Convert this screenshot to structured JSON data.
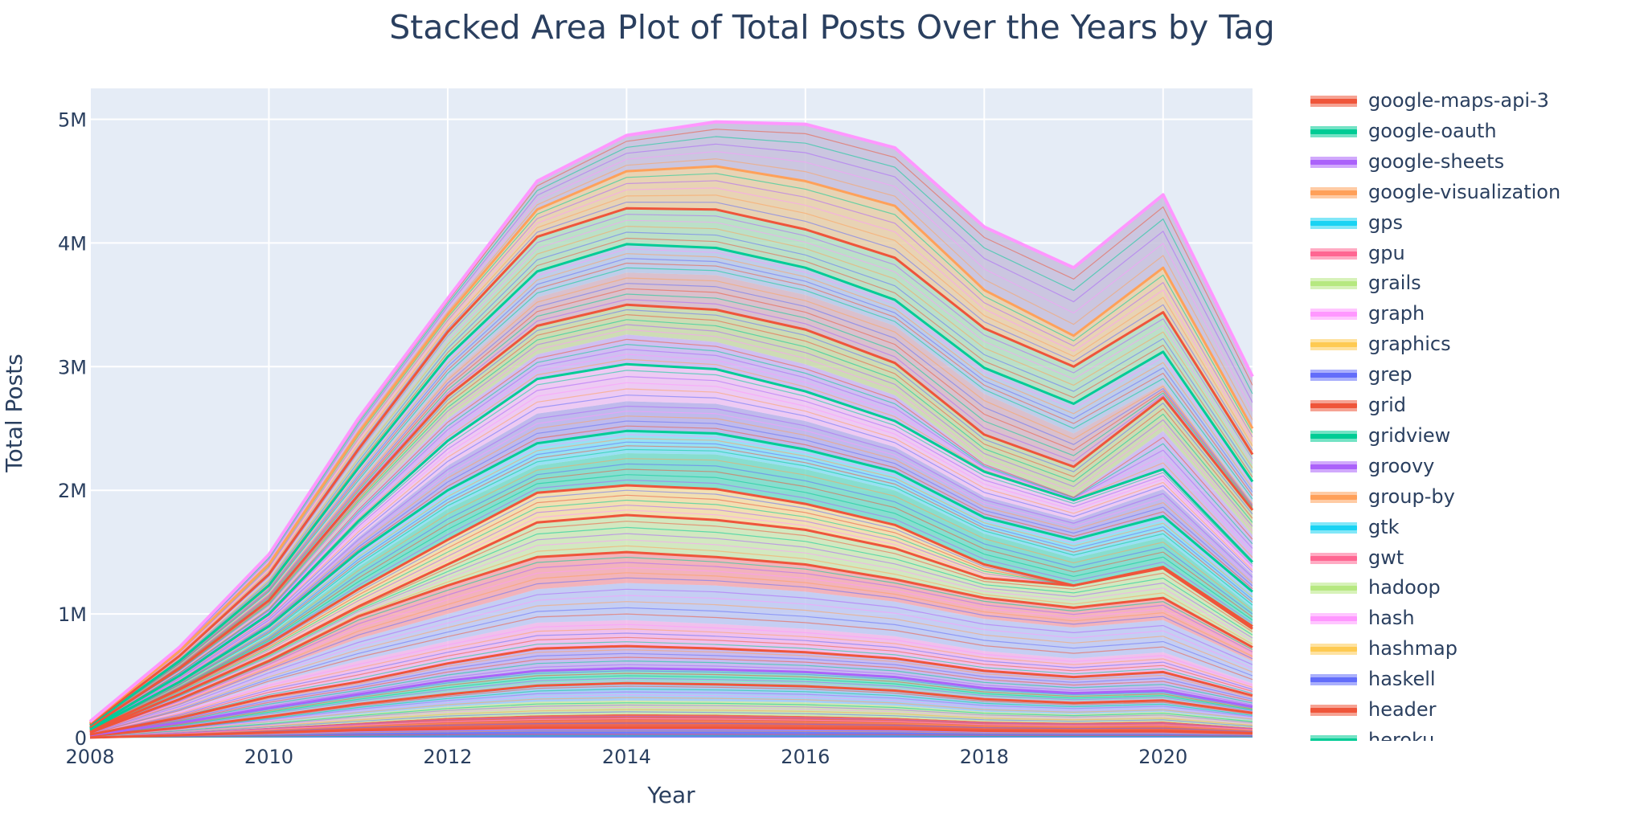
{
  "chart_data": {
    "type": "area",
    "stacked": true,
    "title": "Stacked Area Plot of Total Posts Over the Years by Tag",
    "xlabel": "Year",
    "ylabel": "Total Posts",
    "xlim": [
      2008,
      2021
    ],
    "ylim": [
      0,
      5250000
    ],
    "x_ticks": [
      2008,
      2010,
      2012,
      2014,
      2016,
      2018,
      2020
    ],
    "x_tick_labels": [
      "2008",
      "2010",
      "2012",
      "2014",
      "2016",
      "2018",
      "2020"
    ],
    "y_ticks": [
      0,
      1000000,
      2000000,
      3000000,
      4000000,
      5000000
    ],
    "y_tick_labels": [
      "0",
      "1M",
      "2M",
      "3M",
      "4M",
      "5M"
    ],
    "grid": true,
    "legend_position": "right",
    "x": [
      2008,
      2009,
      2010,
      2011,
      2012,
      2013,
      2014,
      2015,
      2016,
      2017,
      2018,
      2019,
      2020,
      2021
    ],
    "total": [
      130000,
      730000,
      1480000,
      2580000,
      3550000,
      4500000,
      4870000,
      4980000,
      4960000,
      4770000,
      4130000,
      3800000,
      4390000,
      2920000
    ],
    "visible_bands": [
      {
        "name": "band-1",
        "cum": [
          0,
          20000,
          40000,
          60000,
          70000,
          80000,
          80000,
          80000,
          75000,
          70000,
          55000,
          50000,
          50000,
          35000
        ],
        "color": "#636efa"
      },
      {
        "name": "band-2",
        "cum": [
          5000,
          40000,
          80000,
          120000,
          160000,
          180000,
          190000,
          185000,
          175000,
          160000,
          130000,
          120000,
          130000,
          80000
        ],
        "color": "#ef553b"
      },
      {
        "name": "band-3",
        "cum": [
          10000,
          60000,
          120000,
          190000,
          250000,
          290000,
          300000,
          295000,
          285000,
          260000,
          210000,
          190000,
          210000,
          140000
        ],
        "color": "#c9e8a4"
      },
      {
        "name": "band-4",
        "cum": [
          15000,
          80000,
          170000,
          270000,
          350000,
          420000,
          440000,
          430000,
          415000,
          380000,
          310000,
          280000,
          300000,
          200000
        ],
        "color": "#9dc9f5"
      },
      {
        "name": "band-5",
        "cum": [
          20000,
          120000,
          240000,
          350000,
          460000,
          540000,
          560000,
          550000,
          530000,
          490000,
          400000,
          360000,
          380000,
          250000
        ],
        "color": "#7ee0c6"
      },
      {
        "name": "band-6",
        "cum": [
          25000,
          160000,
          330000,
          450000,
          600000,
          720000,
          740000,
          720000,
          690000,
          640000,
          540000,
          490000,
          530000,
          340000
        ],
        "color": "#c3b4ee"
      },
      {
        "name": "band-7",
        "cum": [
          30000,
          210000,
          440000,
          620000,
          780000,
          930000,
          950000,
          920000,
          880000,
          820000,
          700000,
          640000,
          690000,
          440000
        ],
        "color": "#f2b8ea"
      },
      {
        "name": "band-8",
        "cum": [
          35000,
          260000,
          540000,
          800000,
          1000000,
          1200000,
          1250000,
          1230000,
          1180000,
          1100000,
          960000,
          890000,
          950000,
          620000
        ],
        "color": "#bfc9f2"
      },
      {
        "name": "band-9",
        "cum": [
          40000,
          310000,
          620000,
          980000,
          1230000,
          1460000,
          1500000,
          1460000,
          1400000,
          1280000,
          1130000,
          1050000,
          1130000,
          730000
        ],
        "color": "#f5a9b0"
      },
      {
        "name": "band-10",
        "cum": [
          45000,
          350000,
          680000,
          1060000,
          1400000,
          1740000,
          1800000,
          1760000,
          1680000,
          1530000,
          1290000,
          1230000,
          1370000,
          880000
        ],
        "color": "#cfe7b6"
      },
      {
        "name": "band-11",
        "cum": [
          55000,
          390000,
          760000,
          1200000,
          1600000,
          1980000,
          2040000,
          2010000,
          1890000,
          1720000,
          1400000,
          1230000,
          1380000,
          900000
        ],
        "color": "#f3dda6"
      },
      {
        "name": "band-12",
        "cum": [
          60000,
          420000,
          830000,
          1380000,
          1850000,
          2200000,
          2300000,
          2290000,
          2170000,
          2000000,
          1650000,
          1450000,
          1620000,
          1050000
        ],
        "color": "#77dcc8"
      },
      {
        "name": "band-13",
        "cum": [
          65000,
          450000,
          900000,
          1500000,
          2000000,
          2380000,
          2480000,
          2460000,
          2330000,
          2150000,
          1780000,
          1600000,
          1790000,
          1180000
        ],
        "color": "#8bdff2"
      },
      {
        "name": "band-14",
        "cum": [
          70000,
          480000,
          960000,
          1620000,
          2200000,
          2620000,
          2720000,
          2700000,
          2560000,
          2350000,
          1950000,
          1760000,
          2010000,
          1320000
        ],
        "color": "#b9b2ea"
      },
      {
        "name": "band-15",
        "cum": [
          75000,
          500000,
          1000000,
          1750000,
          2400000,
          2900000,
          3020000,
          2980000,
          2800000,
          2560000,
          2150000,
          1920000,
          2170000,
          1420000
        ],
        "color": "#eec4f2"
      },
      {
        "name": "band-16",
        "cum": [
          80000,
          530000,
          1050000,
          1860000,
          2580000,
          3100000,
          3260000,
          3200000,
          3020000,
          2770000,
          2220000,
          1950000,
          2480000,
          1640000
        ],
        "color": "#cbb7f0"
      },
      {
        "name": "band-17",
        "cum": [
          85000,
          560000,
          1110000,
          1960000,
          2760000,
          3330000,
          3500000,
          3460000,
          3300000,
          3030000,
          2450000,
          2190000,
          2750000,
          1840000
        ],
        "color": "#c9d9a8"
      },
      {
        "name": "band-18",
        "cum": [
          90000,
          590000,
          1170000,
          2060000,
          2920000,
          3560000,
          3760000,
          3740000,
          3580000,
          3330000,
          2780000,
          2460000,
          2860000,
          1900000
        ],
        "color": "#d8b9c6"
      },
      {
        "name": "band-19",
        "cum": [
          100000,
          620000,
          1230000,
          2180000,
          3080000,
          3770000,
          3990000,
          3960000,
          3800000,
          3540000,
          2990000,
          2700000,
          3120000,
          2070000
        ],
        "color": "#b8c8e6"
      },
      {
        "name": "band-20",
        "cum": [
          110000,
          660000,
          1320000,
          2330000,
          3280000,
          4050000,
          4280000,
          4270000,
          4110000,
          3880000,
          3310000,
          3000000,
          3440000,
          2290000
        ],
        "color": "#b4dec0"
      },
      {
        "name": "band-21",
        "cum": [
          120000,
          700000,
          1400000,
          2460000,
          3420000,
          4270000,
          4580000,
          4620000,
          4500000,
          4300000,
          3620000,
          3250000,
          3800000,
          2500000
        ],
        "color": "#e9cfa8"
      },
      {
        "name": "band-22",
        "cum": [
          130000,
          730000,
          1480000,
          2580000,
          3550000,
          4500000,
          4870000,
          4980000,
          4960000,
          4770000,
          4130000,
          3800000,
          4390000,
          2920000
        ],
        "color": "#c7bfdc"
      }
    ],
    "boundary_lines": [
      {
        "name": "line-1",
        "cum_ref": 1,
        "color": "#ef553b"
      },
      {
        "name": "line-2",
        "cum_ref": 4,
        "color": "#ef553b"
      },
      {
        "name": "line-3",
        "cum_ref": 5,
        "color": "#ab63fa"
      },
      {
        "name": "line-4",
        "cum_ref": 6,
        "color": "#ef553b"
      },
      {
        "name": "line-5",
        "cum_ref": 9,
        "color": "#ef553b"
      },
      {
        "name": "line-6",
        "cum_ref": 10,
        "color": "#ef553b"
      },
      {
        "name": "line-7",
        "cum_ref": 11,
        "color": "#ef553b"
      },
      {
        "name": "line-8",
        "cum_ref": 13,
        "color": "#00cc96"
      },
      {
        "name": "line-9",
        "cum_ref": 15,
        "color": "#00cc96"
      },
      {
        "name": "line-10",
        "cum_ref": 17,
        "color": "#ef553b"
      },
      {
        "name": "line-11",
        "cum_ref": 19,
        "color": "#00cc96"
      },
      {
        "name": "line-12",
        "cum_ref": 20,
        "color": "#ef553b"
      },
      {
        "name": "line-13",
        "cum_ref": 21,
        "color": "#ffa15a"
      },
      {
        "name": "line-14",
        "cum_ref": 22,
        "color": "#ff97ff"
      }
    ],
    "series": [
      {
        "name": "google-maps-api-3",
        "color": "#ef553b"
      },
      {
        "name": "google-oauth",
        "color": "#00cc96"
      },
      {
        "name": "google-sheets",
        "color": "#ab63fa"
      },
      {
        "name": "google-visualization",
        "color": "#ffa15a"
      },
      {
        "name": "gps",
        "color": "#19d3f3"
      },
      {
        "name": "gpu",
        "color": "#ff6692"
      },
      {
        "name": "grails",
        "color": "#b6e880"
      },
      {
        "name": "graph",
        "color": "#ff97ff"
      },
      {
        "name": "graphics",
        "color": "#fecb52"
      },
      {
        "name": "grep",
        "color": "#636efa"
      },
      {
        "name": "grid",
        "color": "#ef553b"
      },
      {
        "name": "gridview",
        "color": "#00cc96"
      },
      {
        "name": "groovy",
        "color": "#ab63fa"
      },
      {
        "name": "group-by",
        "color": "#ffa15a"
      },
      {
        "name": "gtk",
        "color": "#19d3f3"
      },
      {
        "name": "gwt",
        "color": "#ff6692"
      },
      {
        "name": "hadoop",
        "color": "#b6e880"
      },
      {
        "name": "hash",
        "color": "#ff97ff"
      },
      {
        "name": "hashmap",
        "color": "#fecb52"
      },
      {
        "name": "haskell",
        "color": "#636efa"
      },
      {
        "name": "header",
        "color": "#ef553b"
      },
      {
        "name": "heroku",
        "color": "#00cc96"
      }
    ]
  }
}
